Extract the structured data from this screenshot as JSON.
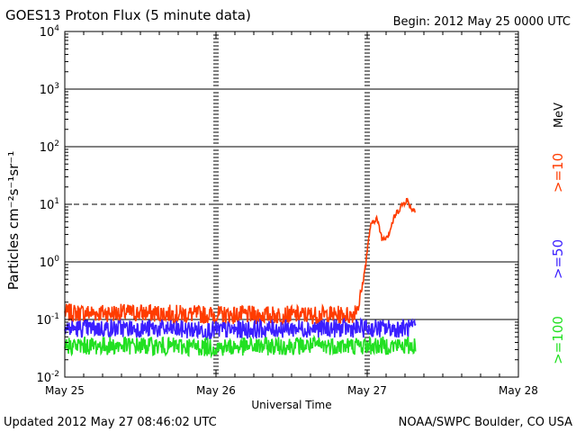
{
  "chart_data": {
    "type": "line",
    "title": "GOES13 Proton Flux (5 minute data)",
    "begin_label": "Begin: 2012 May 25 0000 UTC",
    "xlabel": "Universal Time",
    "ylabel": "Particles cm⁻²s⁻¹sr⁻¹",
    "y_scale": "log",
    "ylim": [
      0.01,
      10000
    ],
    "xlim": [
      0,
      3
    ],
    "x_ticks": [
      {
        "value": 0,
        "label": "May 25"
      },
      {
        "value": 1,
        "label": "May 26"
      },
      {
        "value": 2,
        "label": "May 27"
      },
      {
        "value": 3,
        "label": "May 28"
      }
    ],
    "y_ticks": [
      {
        "exp": -2,
        "base": "10",
        "sup": "-2"
      },
      {
        "exp": -1,
        "base": "10",
        "sup": "-1"
      },
      {
        "exp": 0,
        "base": "10",
        "sup": "0"
      },
      {
        "exp": 1,
        "base": "10",
        "sup": "1"
      },
      {
        "exp": 2,
        "base": "10",
        "sup": "2"
      },
      {
        "exp": 3,
        "base": "10",
        "sup": "3"
      },
      {
        "exp": 4,
        "base": "10",
        "sup": "4"
      }
    ],
    "threshold_dashed": 10,
    "legend": {
      "unit": "MeV",
      "entries": [
        {
          "label": ">=10",
          "color": "#ff3c00"
        },
        {
          "label": ">=50",
          "color": "#3b1fff"
        },
        {
          "label": ">=100",
          "color": "#22e022"
        }
      ]
    },
    "series": [
      {
        "name": ">=10 MeV",
        "color": "#ff3c00",
        "x": [
          0,
          0.5,
          1.0,
          1.5,
          1.9,
          1.95,
          1.98,
          2.02,
          2.06,
          2.1,
          2.14,
          2.18,
          2.22,
          2.26,
          2.3,
          2.32
        ],
        "y": [
          0.13,
          0.13,
          0.12,
          0.12,
          0.12,
          0.2,
          0.6,
          4.0,
          6.0,
          2.5,
          3.0,
          6.0,
          9.0,
          12.0,
          8.0,
          8.5
        ]
      },
      {
        "name": ">=50 MeV",
        "color": "#3b1fff",
        "x": [
          0,
          0.5,
          1.0,
          1.5,
          2.0,
          2.32
        ],
        "y": [
          0.07,
          0.07,
          0.065,
          0.07,
          0.07,
          0.07
        ]
      },
      {
        "name": ">=100 MeV",
        "color": "#22e022",
        "x": [
          0,
          0.5,
          1.0,
          1.5,
          2.0,
          2.32
        ],
        "y": [
          0.035,
          0.035,
          0.033,
          0.035,
          0.035,
          0.035
        ]
      }
    ]
  },
  "footer": {
    "updated": "Updated 2012 May 27 08:46:02 UTC",
    "source": "NOAA/SWPC Boulder, CO USA"
  }
}
